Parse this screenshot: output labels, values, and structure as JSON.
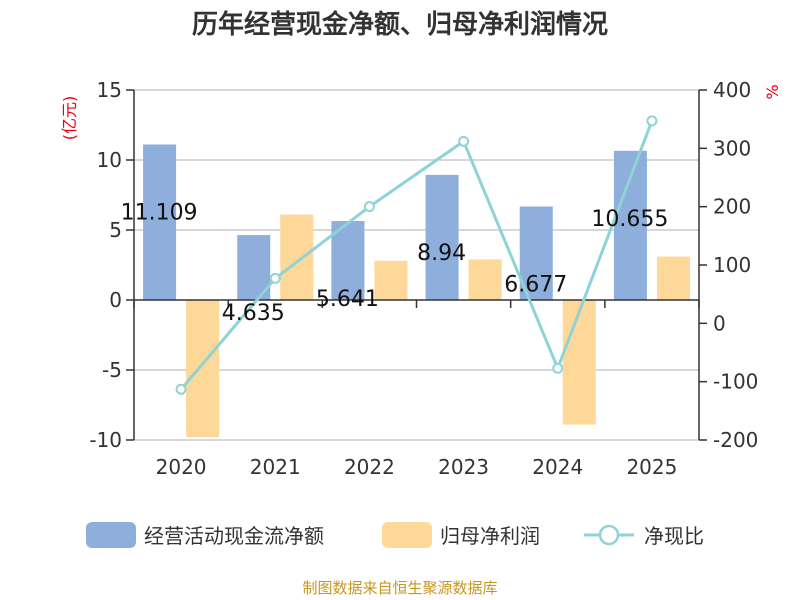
{
  "chart_data": {
    "type": "bar",
    "title": "历年经营现金净额、归母净利润情况",
    "left_unit": "(亿元)",
    "right_unit": "%",
    "categories": [
      "2020",
      "2021",
      "2022",
      "2023",
      "2024",
      "2025"
    ],
    "ylim_left": [
      -10,
      15
    ],
    "yticks_left": [
      "15",
      "10",
      "5",
      "0",
      "-5",
      "-10"
    ],
    "ylim_right": [
      -200,
      400
    ],
    "yticks_right": [
      "400",
      "300",
      "200",
      "100",
      "0",
      "-100",
      "-200"
    ],
    "series": [
      {
        "name": "经营活动现金流净额",
        "type": "bar",
        "axis": "left",
        "color": "#8eaedb",
        "values": [
          11.109,
          4.635,
          5.641,
          8.94,
          6.677,
          10.655
        ]
      },
      {
        "name": "归母净利润",
        "type": "bar",
        "axis": "left",
        "color": "#fdd898",
        "values": [
          -9.8,
          6.1,
          2.8,
          2.9,
          -8.9,
          3.1
        ]
      },
      {
        "name": "净现比",
        "type": "line",
        "axis": "right",
        "color": "#8fd3d6",
        "values": [
          -113,
          77,
          200,
          312,
          -77,
          347
        ]
      }
    ],
    "data_labels": [
      "11.109",
      "4.635",
      "5.641",
      "8.94",
      "6.677",
      "10.655"
    ],
    "grid": true,
    "legend_position": "bottom"
  },
  "source_text": "制图数据来自恒生聚源数据库"
}
